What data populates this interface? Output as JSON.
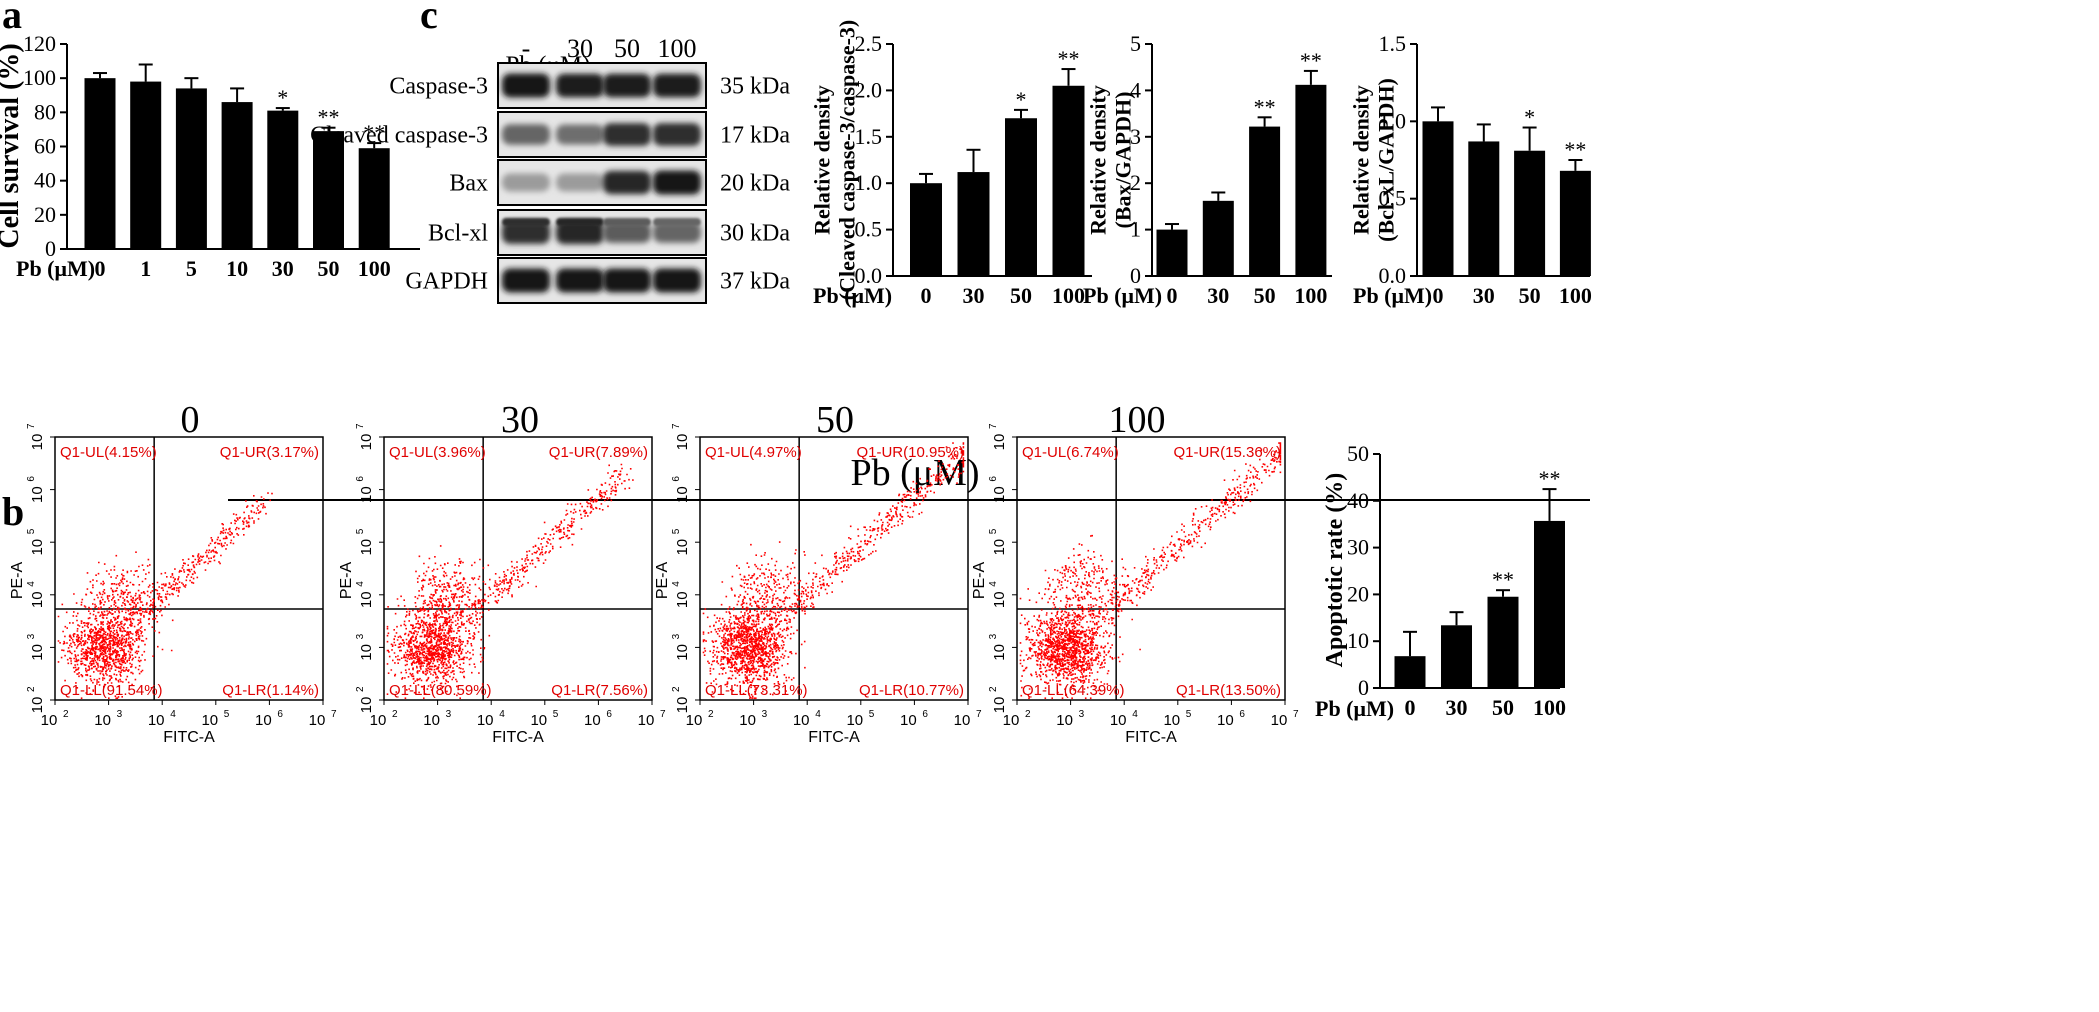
{
  "panel_letters": {
    "a": "a",
    "b": "b",
    "c": "c"
  },
  "flow_header": "Pb (μM)",
  "blot": {
    "header_label": "Pb (μM)",
    "lane_labels": [
      "-",
      "30",
      "50",
      "100"
    ],
    "rows": [
      {
        "protein": "Caspase-3",
        "size": "35 kDa"
      },
      {
        "protein": "Cleaved caspase-3",
        "size": "17 kDa"
      },
      {
        "protein": "Bax",
        "size": "20 kDa"
      },
      {
        "protein": "Bcl-xl",
        "size": "30 kDa"
      },
      {
        "protein": "GAPDH",
        "size": "37 kDa"
      }
    ]
  },
  "flow": {
    "x_axis_label": "FITC-A",
    "y_axis_label": "PE-A",
    "panels": [
      {
        "title": "0",
        "UL": "Q1-UL(4.15%)",
        "UR": "Q1-UR(3.17%)",
        "LL": "Q1-LL(91.54%)",
        "LR": "Q1-LR(1.14%)"
      },
      {
        "title": "30",
        "UL": "Q1-UL(3.96%)",
        "UR": "Q1-UR(7.89%)",
        "LL": "Q1-LL(80.59%)",
        "LR": "Q1-LR(7.56%)"
      },
      {
        "title": "50",
        "UL": "Q1-UL(4.97%)",
        "UR": "Q1-UR(10.95%)",
        "LL": "Q1-LL(73.31%)",
        "LR": "Q1-LR(10.77%)"
      },
      {
        "title": "100",
        "UL": "Q1-UL(6.74%)",
        "UR": "Q1-UR(15.36%)",
        "LL": "Q1-LL(64.39%)",
        "LR": "Q1-LR(13.50%)"
      }
    ],
    "decades": [
      "10",
      "10",
      "10",
      "10",
      "10",
      "10"
    ],
    "exponents": [
      "2",
      "3",
      "4",
      "5",
      "6",
      "7"
    ]
  },
  "chart_data": [
    {
      "id": "a",
      "type": "bar",
      "ylabel": "Cell survival (%)",
      "xlabel": "Pb (μM)",
      "categories": [
        "0",
        "1",
        "5",
        "10",
        "30",
        "50",
        "100"
      ],
      "values": [
        100,
        98,
        94,
        86,
        81,
        69,
        59
      ],
      "errors": [
        3,
        10,
        6,
        8,
        1.5,
        2,
        3
      ],
      "significance": [
        "",
        "",
        "",
        "",
        "*",
        "**",
        "**"
      ],
      "ylim": [
        0,
        120
      ],
      "yticks": [
        0,
        20,
        40,
        60,
        80,
        100,
        120
      ]
    },
    {
      "id": "c1",
      "type": "bar",
      "ylabel": "Relative density (Cleaved caspase-3/caspase-3)",
      "xlabel": "Pb (μM)",
      "categories": [
        "0",
        "30",
        "50",
        "100"
      ],
      "values": [
        1.0,
        1.12,
        1.7,
        2.05
      ],
      "errors": [
        0.1,
        0.24,
        0.09,
        0.18
      ],
      "significance": [
        "",
        "",
        "*",
        "**"
      ],
      "ylim": [
        0,
        2.5
      ],
      "yticks": [
        0.0,
        0.5,
        1.0,
        1.5,
        2.0,
        2.5
      ],
      "ytick_labels": [
        "0.0",
        "0.5",
        "1.0",
        "1.5",
        "2.0",
        "2.5"
      ]
    },
    {
      "id": "c2",
      "type": "bar",
      "ylabel": "Relative density (Bax/GAPDH)",
      "xlabel": "Pb (μM)",
      "categories": [
        "0",
        "30",
        "50",
        "100"
      ],
      "values": [
        1.0,
        1.62,
        3.22,
        4.12
      ],
      "errors": [
        0.12,
        0.18,
        0.2,
        0.3
      ],
      "significance": [
        "",
        "",
        "**",
        "**"
      ],
      "ylim": [
        0,
        5
      ],
      "yticks": [
        0,
        1,
        2,
        3,
        4,
        5
      ],
      "ytick_labels": [
        "0",
        "1",
        "2",
        "3",
        "4",
        "5"
      ]
    },
    {
      "id": "c3",
      "type": "bar",
      "ylabel": "Relative density (Bcl-xL/GAPDH)",
      "xlabel": "Pb (μM)",
      "categories": [
        "0",
        "30",
        "50",
        "100"
      ],
      "values": [
        1.0,
        0.87,
        0.81,
        0.68
      ],
      "errors": [
        0.09,
        0.11,
        0.15,
        0.07
      ],
      "significance": [
        "",
        "",
        "*",
        "**"
      ],
      "ylim": [
        0,
        1.5
      ],
      "yticks": [
        0.0,
        0.5,
        1.0,
        1.5
      ],
      "ytick_labels": [
        "0.0",
        "0.5",
        "1.0",
        "1.5"
      ]
    },
    {
      "id": "b",
      "type": "bar",
      "ylabel": "Apoptotic rate (%)",
      "xlabel": "Pb (μM)",
      "categories": [
        "0",
        "30",
        "50",
        "100"
      ],
      "values": [
        6.8,
        13.4,
        19.5,
        35.7
      ],
      "errors": [
        5.2,
        2.8,
        1.4,
        6.8
      ],
      "significance": [
        "",
        "",
        "**",
        "**"
      ],
      "ylim": [
        0,
        50
      ],
      "yticks": [
        0,
        10,
        20,
        30,
        40,
        50
      ],
      "ytick_labels": [
        "0",
        "10",
        "20",
        "30",
        "40",
        "50"
      ]
    }
  ]
}
